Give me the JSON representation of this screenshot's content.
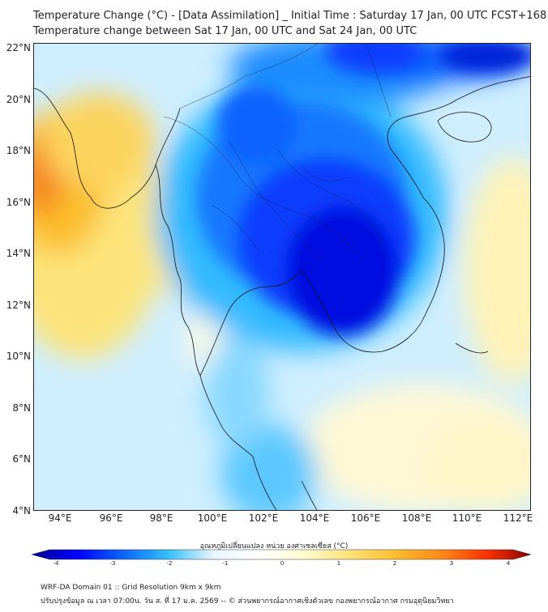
{
  "title_line1": "Temperature Change (°C) - [Data Assimilation] _ Initial Time : Saturday 17 Jan, 00 UTC FCST+168",
  "title_line2": "Temperature change between Sat 17 Jan, 00 UTC and Sat 24 Jan, 00 UTC",
  "lat_labels": [
    "22°N",
    "20°N",
    "18°N",
    "16°N",
    "14°N",
    "12°N",
    "10°N",
    "8°N",
    "6°N",
    "4°N"
  ],
  "lon_labels": [
    "94°E",
    "96°E",
    "98°E",
    "100°E",
    "102°E",
    "104°E",
    "106°E",
    "108°E",
    "110°E",
    "112°E"
  ],
  "colorbar": {
    "title": "อุณหภูมิเปลี่ยนแปลง หน่วย องศาเซลเซียส (°C)",
    "ticks": [
      "-4",
      "-3",
      "-2",
      "-1",
      "0",
      "1",
      "2",
      "3",
      "4"
    ],
    "colors": [
      "#00008b",
      "#0000ff",
      "#0a64ff",
      "#33c0ff",
      "#e8f6ff",
      "#ffffff",
      "#fffbd0",
      "#ffe27a",
      "#ffbe2e",
      "#ff8a1a",
      "#ff3300",
      "#8b0000"
    ]
  },
  "footer_line1": "WRF-DA Domain 01 :: Grid Resolution 9km x 9km",
  "footer_line2": "ปรับปรุงข้อมูล ณ เวลา 07:00น. วัน ส. ที่ 17 ม.ค. 2569 -- © ส่วนพยากรณ์อากาศเชิงตัวเลข กองพยากรณ์อากาศ กรมอุตุนิยมวิทยา"
}
